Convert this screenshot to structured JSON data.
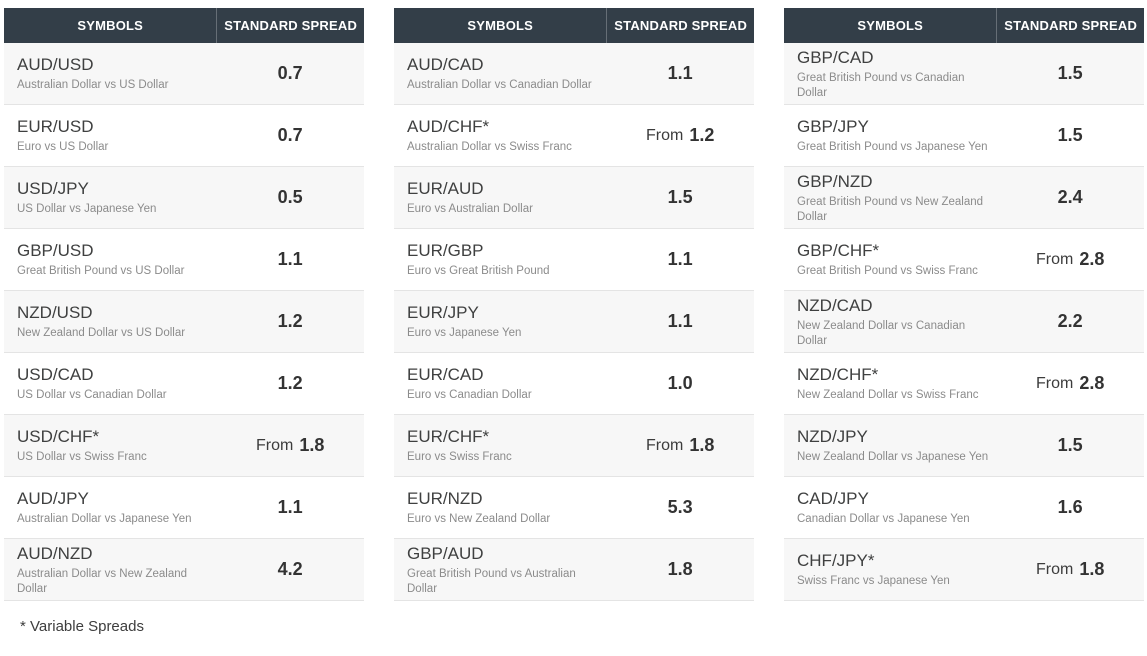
{
  "footnote": "* Variable Spreads",
  "colors": {
    "header_bg": "#333e48",
    "header_text": "#ffffff",
    "row_alt_bg": "#f7f7f7",
    "row_bg": "#ffffff",
    "divider": "#e4e4e4",
    "symbol_text": "#3f4040",
    "description_text": "#8b8b8b",
    "value_text": "#333333"
  },
  "tables": [
    {
      "headers": [
        "SYMBOLS",
        "STANDARD SPREAD"
      ],
      "rows": [
        {
          "symbol": "AUD/USD",
          "description": "Australian Dollar vs US Dollar",
          "prefix": "",
          "value": "0.7"
        },
        {
          "symbol": "EUR/USD",
          "description": "Euro vs US Dollar",
          "prefix": "",
          "value": "0.7"
        },
        {
          "symbol": "USD/JPY",
          "description": "US Dollar vs Japanese Yen",
          "prefix": "",
          "value": "0.5"
        },
        {
          "symbol": "GBP/USD",
          "description": "Great British Pound vs US Dollar",
          "prefix": "",
          "value": "1.1"
        },
        {
          "symbol": "NZD/USD",
          "description": "New Zealand Dollar vs US Dollar",
          "prefix": "",
          "value": "1.2"
        },
        {
          "symbol": "USD/CAD",
          "description": "US Dollar vs Canadian Dollar",
          "prefix": "",
          "value": "1.2"
        },
        {
          "symbol": "USD/CHF*",
          "description": "US Dollar vs Swiss Franc",
          "prefix": "From",
          "value": "1.8"
        },
        {
          "symbol": "AUD/JPY",
          "description": "Australian Dollar vs Japanese Yen",
          "prefix": "",
          "value": "1.1"
        },
        {
          "symbol": "AUD/NZD",
          "description": "Australian Dollar vs New Zealand Dollar",
          "prefix": "",
          "value": "4.2"
        }
      ]
    },
    {
      "headers": [
        "SYMBOLS",
        "STANDARD SPREAD"
      ],
      "rows": [
        {
          "symbol": "AUD/CAD",
          "description": "Australian Dollar vs Canadian Dollar",
          "prefix": "",
          "value": "1.1"
        },
        {
          "symbol": "AUD/CHF*",
          "description": "Australian Dollar vs Swiss Franc",
          "prefix": "From",
          "value": "1.2"
        },
        {
          "symbol": "EUR/AUD",
          "description": "Euro vs Australian Dollar",
          "prefix": "",
          "value": "1.5"
        },
        {
          "symbol": "EUR/GBP",
          "description": "Euro vs Great British Pound",
          "prefix": "",
          "value": "1.1"
        },
        {
          "symbol": "EUR/JPY",
          "description": "Euro vs Japanese Yen",
          "prefix": "",
          "value": "1.1"
        },
        {
          "symbol": "EUR/CAD",
          "description": "Euro vs Canadian Dollar",
          "prefix": "",
          "value": "1.0"
        },
        {
          "symbol": "EUR/CHF*",
          "description": "Euro vs Swiss Franc",
          "prefix": "From",
          "value": "1.8"
        },
        {
          "symbol": "EUR/NZD",
          "description": "Euro vs New Zealand Dollar",
          "prefix": "",
          "value": "5.3"
        },
        {
          "symbol": "GBP/AUD",
          "description": "Great British Pound vs Australian Dollar",
          "prefix": "",
          "value": "1.8"
        }
      ]
    },
    {
      "headers": [
        "SYMBOLS",
        "STANDARD SPREAD"
      ],
      "rows": [
        {
          "symbol": "GBP/CAD",
          "description": "Great British Pound vs Canadian Dollar",
          "prefix": "",
          "value": "1.5"
        },
        {
          "symbol": "GBP/JPY",
          "description": "Great British Pound vs Japanese Yen",
          "prefix": "",
          "value": "1.5"
        },
        {
          "symbol": "GBP/NZD",
          "description": "Great British Pound vs New Zealand Dollar",
          "prefix": "",
          "value": "2.4"
        },
        {
          "symbol": "GBP/CHF*",
          "description": "Great British Pound vs Swiss Franc",
          "prefix": "From",
          "value": "2.8"
        },
        {
          "symbol": "NZD/CAD",
          "description": "New Zealand Dollar vs Canadian Dollar",
          "prefix": "",
          "value": "2.2"
        },
        {
          "symbol": "NZD/CHF*",
          "description": "New Zealand Dollar vs Swiss Franc",
          "prefix": "From",
          "value": "2.8"
        },
        {
          "symbol": "NZD/JPY",
          "description": "New Zealand Dollar vs Japanese Yen",
          "prefix": "",
          "value": "1.5"
        },
        {
          "symbol": "CAD/JPY",
          "description": "Canadian Dollar vs Japanese Yen",
          "prefix": "",
          "value": "1.6"
        },
        {
          "symbol": "CHF/JPY*",
          "description": "Swiss Franc vs Japanese Yen",
          "prefix": "From",
          "value": "1.8"
        }
      ]
    }
  ]
}
